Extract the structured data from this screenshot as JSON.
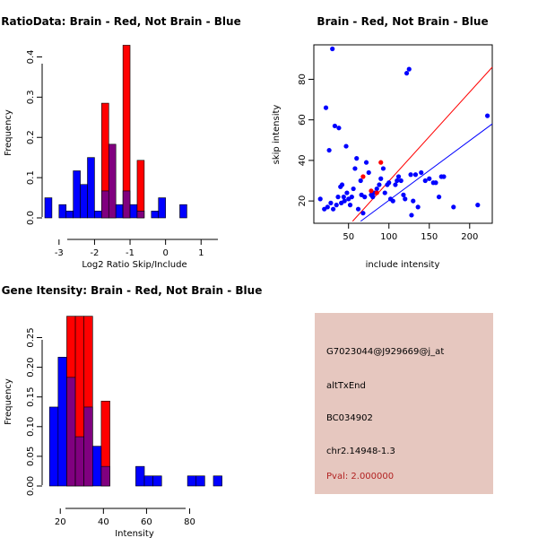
{
  "colors": {
    "red": "#ff0000",
    "blue": "#0000ff",
    "overlap": "#80007f",
    "info_bg": "#e6c7bf",
    "pval": "#b22222"
  },
  "chart_data": [
    {
      "id": "ratio",
      "type": "bar",
      "title": "RatioData: Brain - Red, Not Brain - Blue",
      "xlabel": "Log2 Ratio Skip/Include",
      "ylabel": "Frequency",
      "xlim": [
        -3.45,
        1.65
      ],
      "ylim": [
        0,
        0.43
      ],
      "xticks": [
        -3,
        -2,
        -1,
        0,
        1
      ],
      "yticks": [
        0,
        0.1,
        0.2,
        0.3,
        0.4
      ],
      "ytick_labels": [
        "0.0",
        "0.1",
        "0.2",
        "0.3",
        "0.4"
      ],
      "bin_start": -3.4,
      "bin_width": 0.2,
      "series": [
        {
          "name": "Brain",
          "color": "red",
          "values": [
            0,
            0,
            0,
            0,
            0,
            0,
            0,
            0,
            0.285,
            0.143,
            0,
            0.429,
            0,
            0.143,
            0,
            0,
            0,
            0,
            0,
            0,
            0,
            0,
            0,
            0,
            0
          ]
        },
        {
          "name": "Not Brain",
          "color": "blue",
          "values": [
            0.05,
            0,
            0.033,
            0.017,
            0.117,
            0.083,
            0.15,
            0.017,
            0.067,
            0.183,
            0.033,
            0.067,
            0.033,
            0.017,
            0,
            0.017,
            0.05,
            0,
            0,
            0.033,
            0,
            0,
            0,
            0,
            0
          ]
        }
      ]
    },
    {
      "id": "scatter",
      "type": "scatter",
      "title": "Brain - Red, Not Brain - Blue",
      "xlabel": "include intensity",
      "ylabel": "skip intensity",
      "xlim": [
        7,
        228
      ],
      "ylim": [
        9,
        97
      ],
      "xticks": [
        50,
        100,
        150,
        200
      ],
      "yticks": [
        20,
        40,
        60,
        80
      ],
      "series": [
        {
          "name": "Not Brain",
          "color": "blue",
          "points": [
            [
              15,
              21
            ],
            [
              20,
              16
            ],
            [
              22,
              66
            ],
            [
              24,
              17
            ],
            [
              26,
              45
            ],
            [
              28,
              19
            ],
            [
              30,
              95
            ],
            [
              31,
              16
            ],
            [
              33,
              57
            ],
            [
              35,
              18
            ],
            [
              37,
              22
            ],
            [
              38,
              56
            ],
            [
              40,
              27
            ],
            [
              41,
              19
            ],
            [
              42,
              28
            ],
            [
              44,
              22
            ],
            [
              45,
              20
            ],
            [
              47,
              47
            ],
            [
              48,
              24
            ],
            [
              50,
              21
            ],
            [
              52,
              18
            ],
            [
              54,
              22
            ],
            [
              56,
              26
            ],
            [
              58,
              36
            ],
            [
              60,
              41
            ],
            [
              62,
              16
            ],
            [
              65,
              30
            ],
            [
              66,
              23
            ],
            [
              68,
              14
            ],
            [
              70,
              22
            ],
            [
              72,
              39
            ],
            [
              75,
              34
            ],
            [
              78,
              23
            ],
            [
              80,
              22
            ],
            [
              82,
              24
            ],
            [
              85,
              26
            ],
            [
              88,
              28
            ],
            [
              90,
              31
            ],
            [
              93,
              36
            ],
            [
              95,
              24
            ],
            [
              98,
              28
            ],
            [
              100,
              29
            ],
            [
              102,
              21
            ],
            [
              105,
              20
            ],
            [
              108,
              28
            ],
            [
              110,
              30
            ],
            [
              112,
              32
            ],
            [
              115,
              30
            ],
            [
              118,
              23
            ],
            [
              120,
              21
            ],
            [
              122,
              83
            ],
            [
              125,
              85
            ],
            [
              127,
              33
            ],
            [
              128,
              13
            ],
            [
              130,
              20
            ],
            [
              133,
              33
            ],
            [
              136,
              17
            ],
            [
              140,
              34
            ],
            [
              145,
              30
            ],
            [
              150,
              31
            ],
            [
              155,
              29
            ],
            [
              158,
              29
            ],
            [
              162,
              22
            ],
            [
              165,
              32
            ],
            [
              168,
              32
            ],
            [
              180,
              17
            ],
            [
              210,
              18
            ],
            [
              222,
              62
            ]
          ]
        },
        {
          "name": "Brain",
          "color": "red",
          "points": [
            [
              68,
              32
            ],
            [
              78,
              25
            ],
            [
              85,
              24
            ],
            [
              90,
              39
            ]
          ]
        }
      ],
      "lines": [
        {
          "name": "Brain fit",
          "color": "red",
          "from": [
            55,
            10
          ],
          "to": [
            228,
            86
          ]
        },
        {
          "name": "Not Brain fit",
          "color": "blue",
          "from": [
            65,
            10
          ],
          "to": [
            228,
            58
          ]
        }
      ]
    },
    {
      "id": "gene",
      "type": "bar",
      "title": "Gene Itensity: Brain - Red, Not Brain - Blue",
      "xlabel": "Intensity",
      "ylabel": "Frequency",
      "xlim": [
        12,
        96
      ],
      "ylim": [
        0,
        0.29
      ],
      "xticks": [
        20,
        40,
        60,
        80
      ],
      "yticks": [
        0,
        0.05,
        0.1,
        0.15,
        0.2,
        0.25
      ],
      "ytick_labels": [
        "0.00",
        "0.05",
        "0.10",
        "0.15",
        "0.20",
        "0.25"
      ],
      "bin_start": 15,
      "bin_width": 4,
      "series": [
        {
          "name": "Brain",
          "color": "red",
          "values": [
            0,
            0,
            0.286,
            0.286,
            0.286,
            0,
            0.143,
            0,
            0,
            0,
            0,
            0,
            0,
            0,
            0,
            0,
            0,
            0,
            0,
            0
          ]
        },
        {
          "name": "Not Brain",
          "color": "blue",
          "values": [
            0.133,
            0.217,
            0.183,
            0.083,
            0.133,
            0.067,
            0.033,
            0,
            0,
            0,
            0.033,
            0.017,
            0.017,
            0,
            0,
            0,
            0.017,
            0.017,
            0,
            0.017
          ]
        }
      ]
    }
  ],
  "info_panel": {
    "probe_id": "G7023044@J929669@j_at",
    "event_type": "altTxEnd",
    "accession": "BC034902",
    "location": "chr2.14948-1.3",
    "pval": "Pval: 2.000000"
  }
}
